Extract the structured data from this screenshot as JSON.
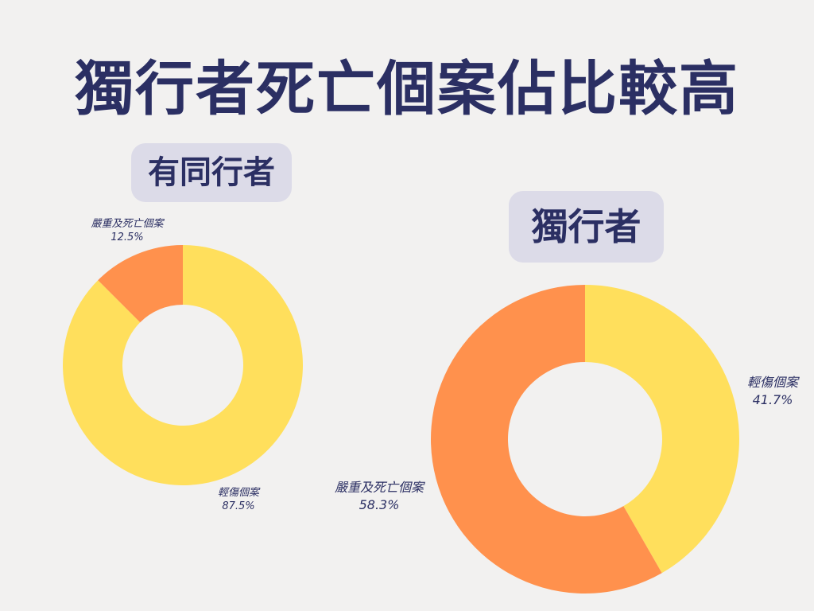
{
  "title": "獨行者死亡個案佔比較高",
  "chart_data": [
    {
      "type": "pie",
      "title": "有同行者",
      "labels": [
        "輕傷個案",
        "嚴重及死亡個案"
      ],
      "values": [
        87.5,
        12.5
      ],
      "value_labels": [
        "87.5%",
        "12.5%"
      ],
      "colors": [
        "#ffdf5c",
        "#ff914d"
      ]
    },
    {
      "type": "pie",
      "title": "獨行者",
      "labels": [
        "輕傷個案",
        "嚴重及死亡個案"
      ],
      "values": [
        41.7,
        58.3
      ],
      "value_labels": [
        "41.7%",
        "58.3%"
      ],
      "colors": [
        "#ffdf5c",
        "#ff914d"
      ]
    }
  ]
}
